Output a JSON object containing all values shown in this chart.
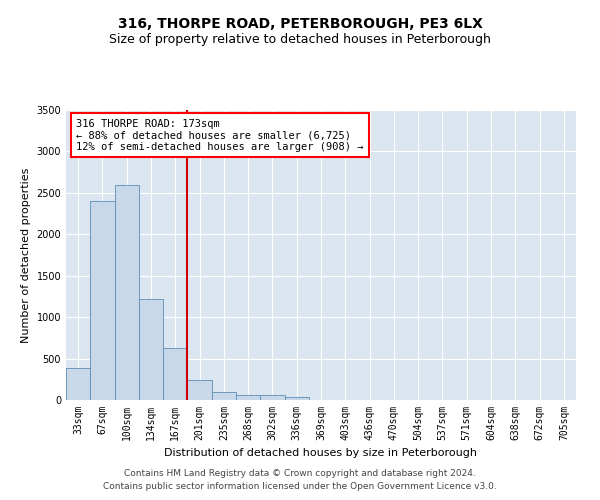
{
  "title": "316, THORPE ROAD, PETERBOROUGH, PE3 6LX",
  "subtitle": "Size of property relative to detached houses in Peterborough",
  "xlabel": "Distribution of detached houses by size in Peterborough",
  "ylabel": "Number of detached properties",
  "footer_line1": "Contains HM Land Registry data © Crown copyright and database right 2024.",
  "footer_line2": "Contains public sector information licensed under the Open Government Licence v3.0.",
  "categories": [
    "33sqm",
    "67sqm",
    "100sqm",
    "134sqm",
    "167sqm",
    "201sqm",
    "235sqm",
    "268sqm",
    "302sqm",
    "336sqm",
    "369sqm",
    "403sqm",
    "436sqm",
    "470sqm",
    "504sqm",
    "537sqm",
    "571sqm",
    "604sqm",
    "638sqm",
    "672sqm",
    "705sqm"
  ],
  "values": [
    390,
    2400,
    2600,
    1220,
    630,
    240,
    100,
    65,
    55,
    40,
    0,
    0,
    0,
    0,
    0,
    0,
    0,
    0,
    0,
    0,
    0
  ],
  "ylim": [
    0,
    3500
  ],
  "yticks": [
    0,
    500,
    1000,
    1500,
    2000,
    2500,
    3000,
    3500
  ],
  "bar_color": "#c8d8e8",
  "bar_edge_color": "#5b8db8",
  "vline_x_index": 4.5,
  "annotation_title": "316 THORPE ROAD: 173sqm",
  "annotation_line1": "← 88% of detached houses are smaller (6,725)",
  "annotation_line2": "12% of semi-detached houses are larger (908) →",
  "vline_color": "#cc0000",
  "plot_bg_color": "#dce6f0",
  "grid_color": "#ffffff",
  "fig_bg_color": "#ffffff",
  "title_fontsize": 10,
  "subtitle_fontsize": 9,
  "axis_label_fontsize": 8,
  "tick_fontsize": 7,
  "annotation_fontsize": 7.5,
  "footer_fontsize": 6.5
}
